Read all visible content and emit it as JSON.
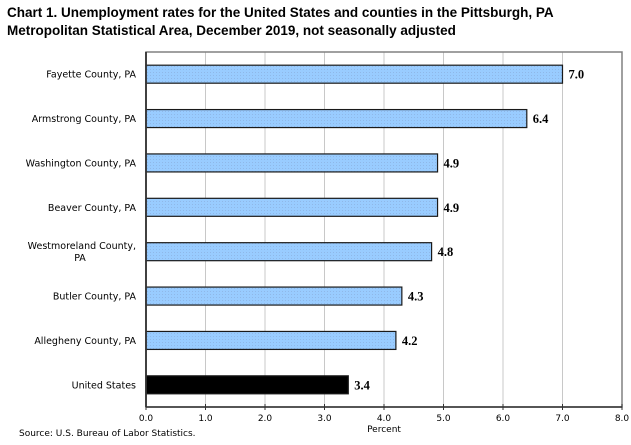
{
  "chart_data": {
    "type": "bar",
    "orientation": "horizontal",
    "title_lines": [
      "Chart 1. Unemployment rates for the United States and counties in the Pittsburgh, PA",
      "Metropolitan Statistical Area, December 2019, not seasonally adjusted"
    ],
    "categories": [
      [
        "Fayette County, PA"
      ],
      [
        "Armstrong County, PA"
      ],
      [
        "Washington County, PA"
      ],
      [
        "Beaver County, PA"
      ],
      [
        "Westmoreland County,",
        "PA"
      ],
      [
        "Butler County, PA"
      ],
      [
        "Allegheny County, PA"
      ],
      [
        "United States"
      ]
    ],
    "values": [
      7.0,
      6.4,
      4.9,
      4.9,
      4.8,
      4.3,
      4.2,
      3.4
    ],
    "value_labels": [
      "7.0",
      "6.4",
      "4.9",
      "4.9",
      "4.8",
      "4.3",
      "4.2",
      "3.4"
    ],
    "bar_colors": [
      "#99ccff",
      "#99ccff",
      "#99ccff",
      "#99ccff",
      "#99ccff",
      "#99ccff",
      "#99ccff",
      "#000000"
    ],
    "xlabel": "Percent",
    "ylabel": "",
    "xlim": [
      0,
      8
    ],
    "x_ticks": [
      0,
      1,
      2,
      3,
      4,
      5,
      6,
      7,
      8
    ],
    "x_tick_labels": [
      "0.0",
      "1.0",
      "2.0",
      "3.0",
      "4.0",
      "5.0",
      "6.0",
      "7.0",
      "8.0"
    ],
    "grid": "vertical",
    "legend": "none",
    "source": "Source: U.S. Bureau of Labor Statistics."
  },
  "colors": {
    "county_bar": "#99ccff",
    "us_bar": "#000000",
    "gridline": "#c8c8c8",
    "frame": "#808080"
  }
}
